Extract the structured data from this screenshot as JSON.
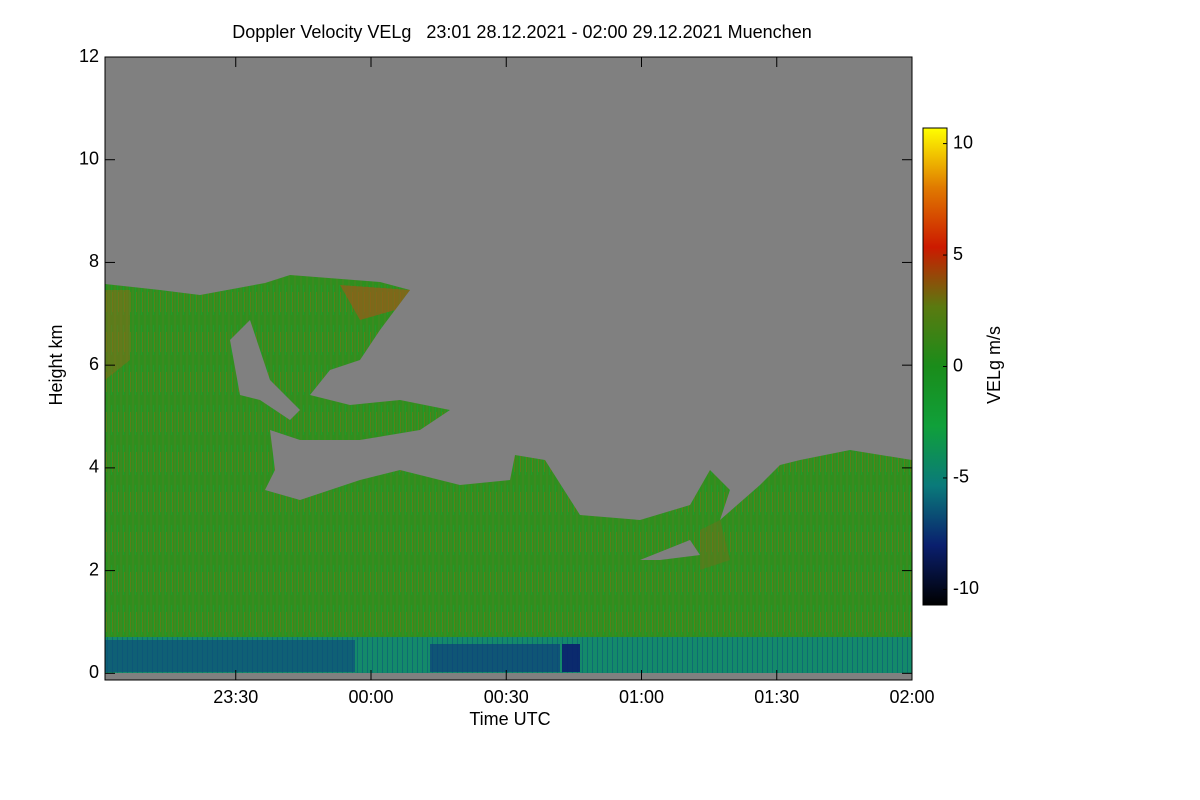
{
  "chart_data": {
    "type": "heatmap",
    "title": "Doppler Velocity VELg   23:01 28.12.2021 - 02:00 29.12.2021 Muenchen",
    "x_label": "Time UTC",
    "y_label": "Height km",
    "colorbar_label": "VELg m/s",
    "xlim": [
      1,
      180
    ],
    "xticks": [
      {
        "value": 30,
        "label": "23:30"
      },
      {
        "value": 60,
        "label": "00:00"
      },
      {
        "value": 90,
        "label": "00:30"
      },
      {
        "value": 120,
        "label": "01:00"
      },
      {
        "value": 150,
        "label": "01:30"
      },
      {
        "value": 180,
        "label": "02:00"
      }
    ],
    "ylim": [
      -0.13,
      12
    ],
    "yticks": [
      0,
      2,
      4,
      6,
      8,
      10,
      12
    ],
    "clim": [
      -10.7,
      10.7
    ],
    "cticks": [
      -10,
      -5,
      0,
      5,
      10
    ],
    "colorscale": [
      "#000000",
      "#0a1f6e",
      "#0a7a7a",
      "#10a03a",
      "#1a8c1a",
      "#5a7a10",
      "#cc1a00",
      "#e07a00",
      "#ffff00"
    ]
  }
}
